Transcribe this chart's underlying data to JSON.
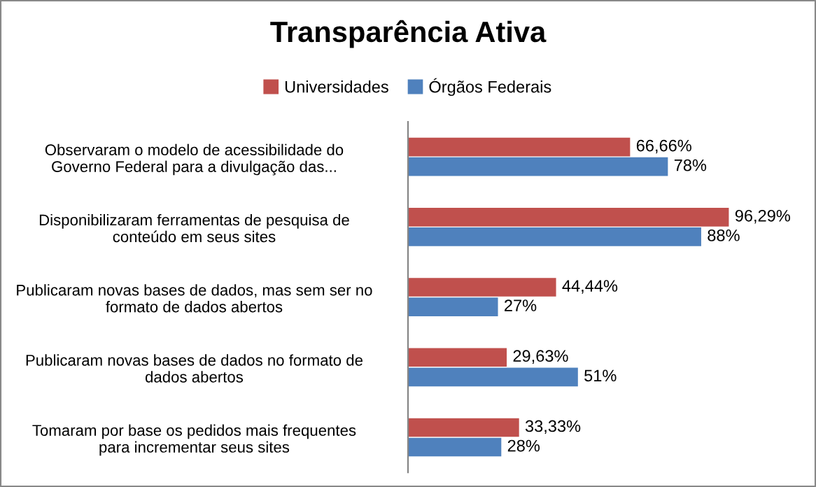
{
  "chart_data": {
    "type": "bar",
    "orientation": "horizontal",
    "title": "Transparência Ativa",
    "categories": [
      "Observaram o modelo de acessibilidade do\nGoverno Federal para a divulgação das...",
      "Disponibilizaram ferramentas de pesquisa de\nconteúdo em seus sites",
      "Publicaram novas bases de dados, mas sem ser no\nformato de dados abertos",
      "Publicaram novas bases de dados no formato de\ndados abertos",
      "Tomaram por base os pedidos mais frequentes\npara incrementar seus sites"
    ],
    "series": [
      {
        "name": "Universidades",
        "color": "#c0504d",
        "values": [
          66.66,
          96.29,
          44.44,
          29.63,
          33.33
        ],
        "value_labels": [
          "66,66%",
          "96,29%",
          "44,44%",
          "29,63%",
          "33,33%"
        ]
      },
      {
        "name": "Órgãos Federais",
        "color": "#4f81bd",
        "values": [
          78,
          88,
          27,
          51,
          28
        ],
        "value_labels": [
          "78%",
          "88%",
          "27%",
          "51%",
          "28%"
        ]
      }
    ],
    "legend": "top",
    "grid": false
  }
}
